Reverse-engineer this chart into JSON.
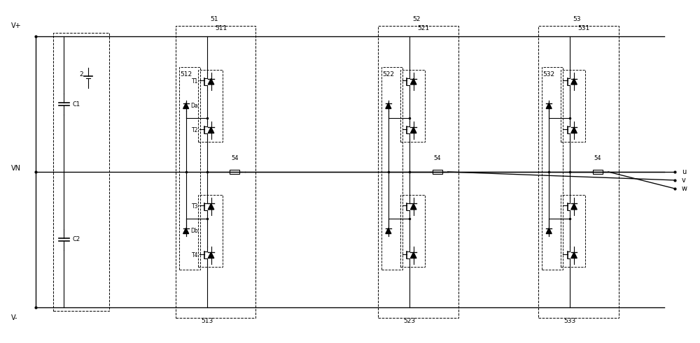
{
  "fig_width": 10.0,
  "fig_height": 4.91,
  "bg_color": "#ffffff",
  "line_color": "#000000",
  "dashed_color": "#000000",
  "title": "",
  "labels": {
    "Vp": "V+",
    "Vn": "VN",
    "Vm": "V-",
    "C1": "C1",
    "C2": "C2",
    "label2": "2",
    "T1": "T1",
    "T2": "T2",
    "T3": "T3",
    "T4": "T4",
    "Da": "Da",
    "Db": "Db",
    "ref51": "51",
    "ref511": "511",
    "ref512": "512",
    "ref513": "513",
    "ref52": "52",
    "ref521": "521",
    "ref522": "522",
    "ref523": "523",
    "ref53": "53",
    "ref531": "531",
    "ref532": "532",
    "ref533": "533",
    "ref54": "54",
    "u": "u",
    "v": "v",
    "w": "w"
  }
}
